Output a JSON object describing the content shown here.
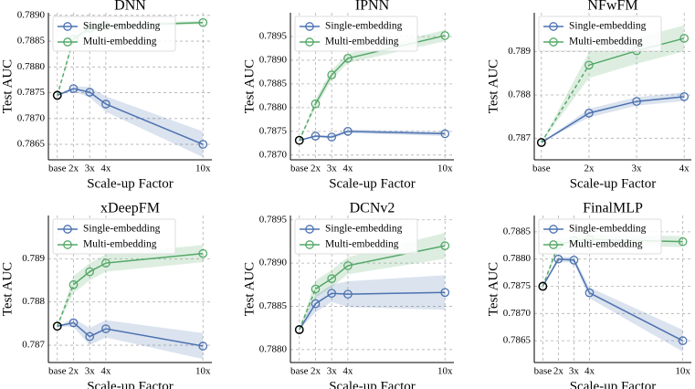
{
  "chart_data": [
    {
      "type": "line",
      "title": "DNN",
      "xlabel": "Scale-up Factor",
      "ylabel": "Test AUC",
      "x": [
        1,
        2,
        3,
        4,
        10
      ],
      "xlim": [
        0.45,
        10.55
      ],
      "xticks": [
        {
          "value": 1,
          "label": "base"
        },
        {
          "value": 2,
          "label": "2x"
        },
        {
          "value": 3,
          "label": "3x"
        },
        {
          "value": 4,
          "label": "4x"
        },
        {
          "value": 10,
          "label": "10x"
        }
      ],
      "ylim": [
        0.7862,
        0.78905
      ],
      "yticks": [
        0.7865,
        {
          "value": 0.787,
          "label": "0.7870"
        },
        0.7875,
        {
          "value": 0.788,
          "label": "0.7880"
        },
        0.7885,
        {
          "value": 0.789,
          "label": "0.7890"
        }
      ],
      "grid": true,
      "legend": "upper left",
      "base_marker_edge": "#000000",
      "series": [
        {
          "name": "Single-embedding",
          "color": "#4c72b0",
          "values": [
            0.78745,
            0.78758,
            0.78751,
            0.78728,
            0.7865
          ],
          "errors": [
            0,
            5e-05,
            0.0001,
            0.00015,
            0.00025
          ]
        },
        {
          "name": "Multi-embedding",
          "color": "#55a868",
          "first_segment_dashed": true,
          "values": [
            0.78745,
            0.78854,
            0.78875,
            0.7888,
            0.78886
          ],
          "errors": [
            0,
            8e-05,
            5e-05,
            5e-05,
            3e-05
          ]
        }
      ]
    },
    {
      "type": "line",
      "title": "IPNN",
      "xlabel": "Scale-up Factor",
      "ylabel": "Test AUC",
      "x": [
        1,
        2,
        3,
        4,
        10
      ],
      "xlim": [
        0.45,
        10.55
      ],
      "xticks": [
        {
          "value": 1,
          "label": "base"
        },
        {
          "value": 2,
          "label": "2x"
        },
        {
          "value": 3,
          "label": "3x"
        },
        {
          "value": 4,
          "label": "4x"
        },
        {
          "value": 10,
          "label": "10x"
        }
      ],
      "ylim": [
        0.7869,
        0.79
      ],
      "yticks": [
        {
          "value": 0.787,
          "label": "0.7870"
        },
        0.7875,
        {
          "value": 0.788,
          "label": "0.7880"
        },
        0.7885,
        {
          "value": 0.789,
          "label": "0.7890"
        },
        0.7895
      ],
      "grid": true,
      "legend": "upper left",
      "base_marker_edge": "#000000",
      "series": [
        {
          "name": "Single-embedding",
          "color": "#4c72b0",
          "values": [
            0.78731,
            0.7874,
            0.78738,
            0.7875,
            0.78745
          ],
          "errors": [
            0,
            3e-05,
            3e-05,
            4e-05,
            5e-05
          ]
        },
        {
          "name": "Multi-embedding",
          "color": "#55a868",
          "first_segment_dashed": true,
          "values": [
            0.78731,
            0.78808,
            0.78869,
            0.78904,
            0.78952
          ],
          "errors": [
            0,
            0.0001,
            0.0001,
            0.0001,
            0.00012
          ]
        }
      ]
    },
    {
      "type": "line",
      "title": "NFwFM",
      "xlabel": "Scale-up Factor",
      "ylabel": "Test AUC",
      "x": [
        1,
        2,
        3,
        4
      ],
      "xlim": [
        0.85,
        4.15
      ],
      "xticks": [
        {
          "value": 1,
          "label": "base"
        },
        {
          "value": 2,
          "label": "2x"
        },
        {
          "value": 3,
          "label": "3x"
        },
        {
          "value": 4,
          "label": "4x"
        }
      ],
      "ylim": [
        0.7865,
        0.7899
      ],
      "yticks": [
        0.787,
        0.788,
        0.789
      ],
      "grid": true,
      "legend": "upper left",
      "base_marker_edge": "#000000",
      "series": [
        {
          "name": "Single-embedding",
          "color": "#4c72b0",
          "values": [
            0.7869,
            0.78758,
            0.78785,
            0.78796
          ],
          "errors": [
            0,
            0.0001,
            0.0001,
            0.0001
          ]
        },
        {
          "name": "Multi-embedding",
          "color": "#55a868",
          "first_segment_dashed": true,
          "values": [
            0.7869,
            0.78869,
            0.78902,
            0.78931
          ],
          "errors": [
            0,
            0.0003,
            0.0003,
            0.0003
          ]
        }
      ]
    },
    {
      "type": "line",
      "title": "xDeepFM",
      "xlabel": "Scale-up Factor",
      "ylabel": "Test AUC",
      "x": [
        1,
        2,
        3,
        4,
        10
      ],
      "xlim": [
        0.45,
        10.55
      ],
      "xticks": [
        {
          "value": 1,
          "label": "base"
        },
        {
          "value": 2,
          "label": "2x"
        },
        {
          "value": 3,
          "label": "3x"
        },
        {
          "value": 4,
          "label": "4x"
        },
        {
          "value": 10,
          "label": "10x"
        }
      ],
      "ylim": [
        0.7866,
        0.79
      ],
      "yticks": [
        0.787,
        0.788,
        0.789
      ],
      "grid": true,
      "legend": "upper left",
      "base_marker_edge": "#000000",
      "series": [
        {
          "name": "Single-embedding",
          "color": "#4c72b0",
          "values": [
            0.78744,
            0.78752,
            0.7872,
            0.78738,
            0.78698
          ],
          "errors": [
            0,
            0.0001,
            0.0002,
            0.0002,
            0.0003
          ]
        },
        {
          "name": "Multi-embedding",
          "color": "#55a868",
          "first_segment_dashed": true,
          "values": [
            0.78744,
            0.7884,
            0.7887,
            0.7889,
            0.78912
          ],
          "errors": [
            0,
            0.0002,
            0.0002,
            0.0002,
            0.0002
          ]
        }
      ]
    },
    {
      "type": "line",
      "title": "DCNv2",
      "xlabel": "Scale-up Factor",
      "ylabel": "Test AUC",
      "x": [
        1,
        2,
        3,
        4,
        10
      ],
      "xlim": [
        0.45,
        10.55
      ],
      "xticks": [
        {
          "value": 1,
          "label": "base"
        },
        {
          "value": 2,
          "label": "2x"
        },
        {
          "value": 3,
          "label": "3x"
        },
        {
          "value": 4,
          "label": "4x"
        },
        {
          "value": 10,
          "label": "10x"
        }
      ],
      "ylim": [
        0.78785,
        0.78955
      ],
      "yticks": [
        {
          "value": 0.788,
          "label": "0.7880"
        },
        0.7885,
        {
          "value": 0.789,
          "label": "0.7890"
        },
        0.7895
      ],
      "grid": true,
      "legend": "upper left",
      "base_marker_edge": "#000000",
      "series": [
        {
          "name": "Single-embedding",
          "color": "#4c72b0",
          "values": [
            0.78823,
            0.78853,
            0.78865,
            0.78864,
            0.78866
          ],
          "errors": [
            0,
            0.0001,
            0.0001,
            0.00015,
            0.0002
          ]
        },
        {
          "name": "Multi-embedding",
          "color": "#55a868",
          "first_segment_dashed": true,
          "values": [
            0.78823,
            0.7887,
            0.78882,
            0.78897,
            0.7892
          ],
          "errors": [
            0,
            0.0001,
            0.0001,
            0.0001,
            0.00015
          ]
        }
      ]
    },
    {
      "type": "line",
      "title": "FinalMLP",
      "xlabel": "Scale-up Factor",
      "ylabel": "Test AUC",
      "x": [
        1,
        2,
        3,
        4,
        10
      ],
      "xlim": [
        0.45,
        10.55
      ],
      "xticks": [
        {
          "value": 1,
          "label": "base"
        },
        {
          "value": 2,
          "label": "2x"
        },
        {
          "value": 3,
          "label": "3x"
        },
        {
          "value": 4,
          "label": "4x"
        },
        {
          "value": 10,
          "label": "10x"
        }
      ],
      "ylim": [
        0.7861,
        0.7888
      ],
      "yticks": [
        0.7865,
        {
          "value": 0.787,
          "label": "0.7870"
        },
        0.7875,
        {
          "value": 0.788,
          "label": "0.7880"
        },
        0.7885
      ],
      "grid": true,
      "legend": "upper left",
      "base_marker_edge": "#000000",
      "series": [
        {
          "name": "Single-embedding",
          "color": "#4c72b0",
          "values": [
            0.7875,
            0.788,
            0.78798,
            0.78738,
            0.7865
          ],
          "errors": [
            0,
            5e-05,
            5e-05,
            0.0001,
            0.0002
          ]
        },
        {
          "name": "Multi-embedding",
          "color": "#55a868",
          "first_segment_dashed": true,
          "values": [
            0.7875,
            0.78826,
            0.78834,
            0.78836,
            0.78832
          ],
          "errors": [
            0,
            0.0001,
            0.0001,
            0.0001,
            0.0001
          ]
        }
      ]
    }
  ]
}
